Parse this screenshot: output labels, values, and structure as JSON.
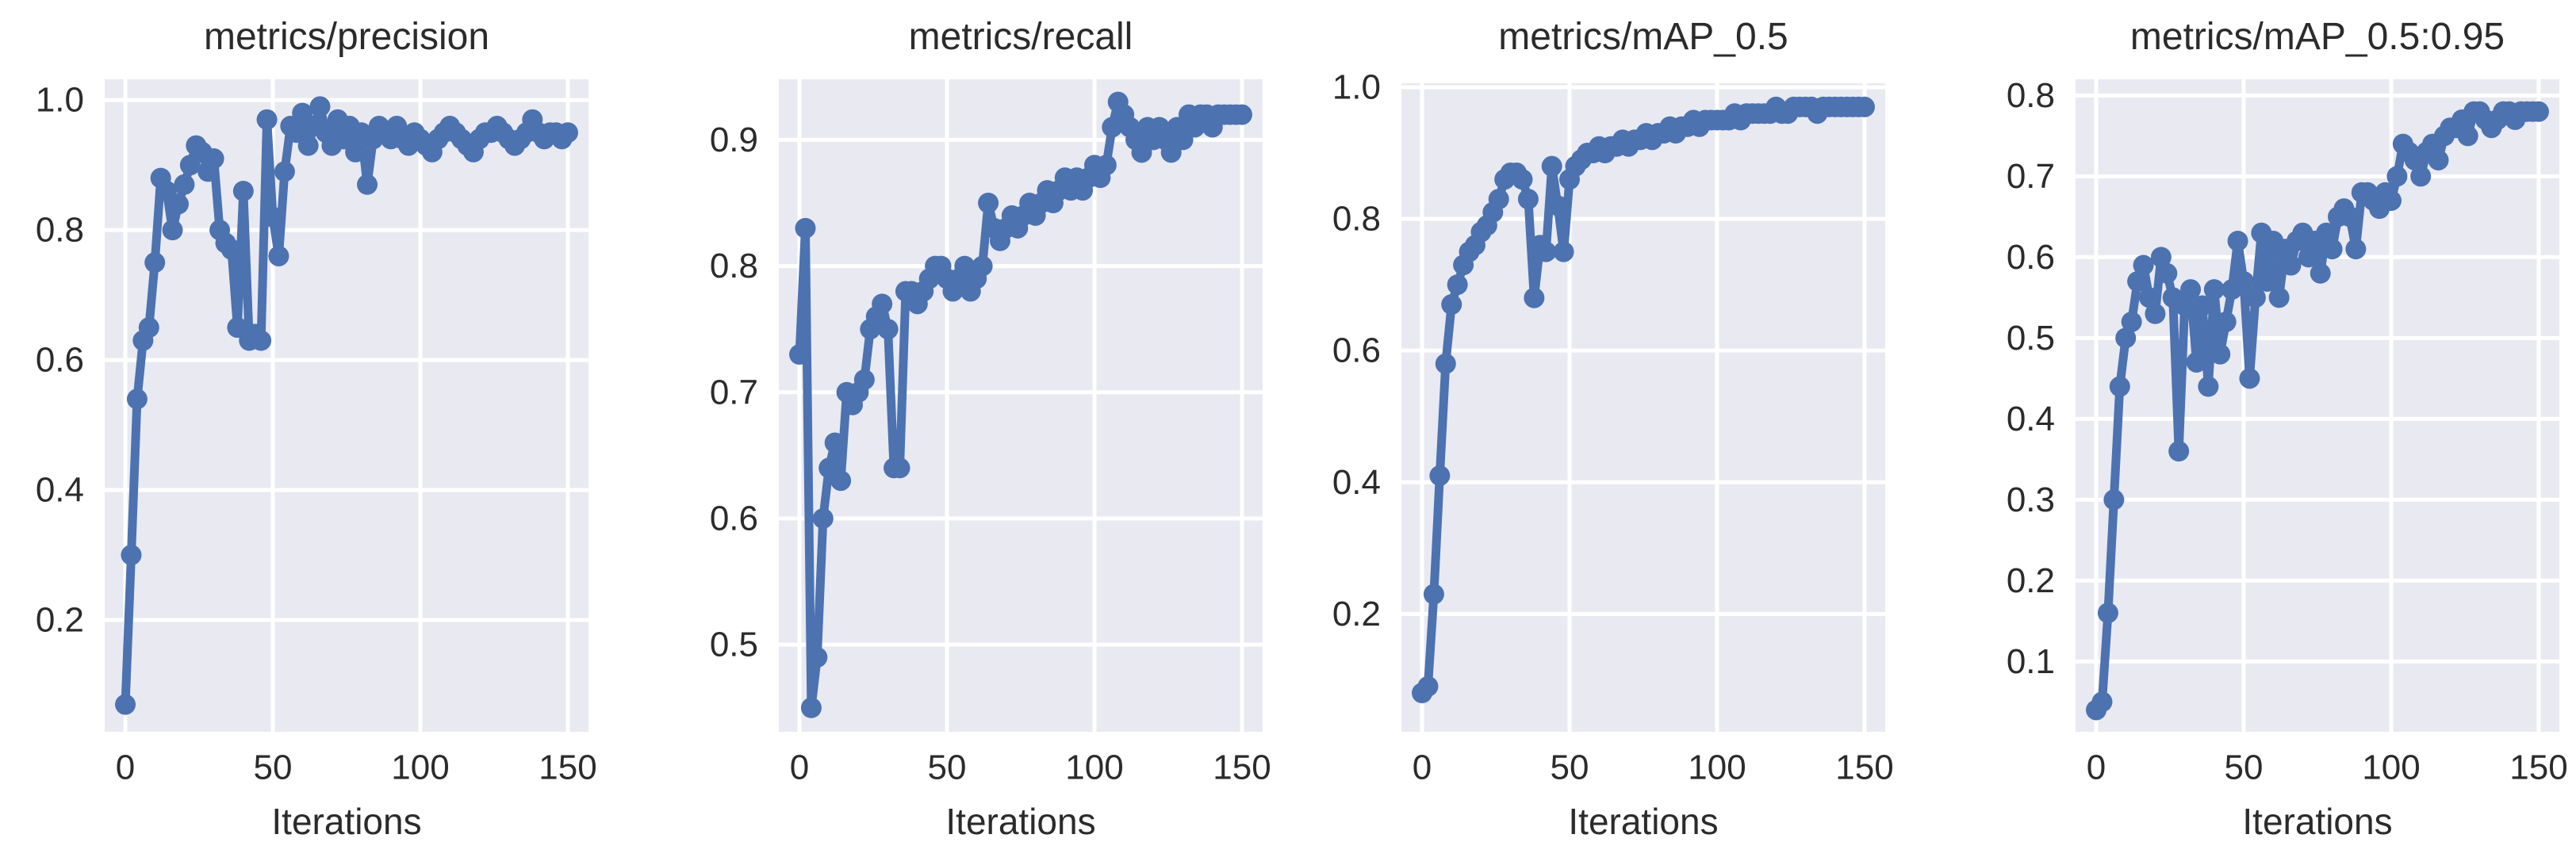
{
  "figure": {
    "line_color": "#4c72b0",
    "plot_bg_color": "#e9e9f1",
    "grid_color": "#ffffff",
    "text_color": "#2b2b2b",
    "figure_bg_color": "#ffffff",
    "marker": "circle",
    "legend": "none",
    "grid": "on"
  },
  "chart_data": [
    {
      "type": "line",
      "title": "metrics/precision",
      "xlabel": "Iterations",
      "xtick_values": [
        0,
        50,
        100,
        150
      ],
      "xtick_labels": [
        "0",
        "50",
        "100",
        "150"
      ],
      "ytick_values": [
        0.2,
        0.4,
        0.6,
        0.8,
        1.0
      ],
      "ytick_labels": [
        "0.2",
        "0.4",
        "0.6",
        "0.8",
        "1.0"
      ],
      "xlim": [
        -7,
        157
      ],
      "ylim": [
        0.028,
        1.032
      ],
      "x": [
        0,
        2,
        4,
        6,
        8,
        10,
        12,
        14,
        16,
        18,
        20,
        22,
        24,
        26,
        28,
        30,
        32,
        34,
        36,
        38,
        40,
        42,
        44,
        46,
        48,
        50,
        52,
        54,
        56,
        58,
        60,
        62,
        64,
        66,
        68,
        70,
        72,
        74,
        76,
        78,
        80,
        82,
        84,
        86,
        88,
        90,
        92,
        94,
        96,
        98,
        100,
        102,
        104,
        106,
        108,
        110,
        112,
        114,
        116,
        118,
        120,
        122,
        124,
        126,
        128,
        130,
        132,
        134,
        136,
        138,
        140,
        142,
        144,
        146,
        148,
        150
      ],
      "y": [
        0.07,
        0.3,
        0.54,
        0.63,
        0.65,
        0.75,
        0.88,
        0.86,
        0.8,
        0.84,
        0.87,
        0.9,
        0.93,
        0.92,
        0.89,
        0.91,
        0.8,
        0.78,
        0.77,
        0.65,
        0.86,
        0.63,
        0.64,
        0.63,
        0.97,
        0.82,
        0.76,
        0.89,
        0.96,
        0.95,
        0.98,
        0.93,
        0.96,
        0.99,
        0.95,
        0.93,
        0.97,
        0.94,
        0.96,
        0.92,
        0.95,
        0.87,
        0.94,
        0.96,
        0.95,
        0.94,
        0.96,
        0.94,
        0.93,
        0.95,
        0.94,
        0.93,
        0.92,
        0.94,
        0.95,
        0.96,
        0.95,
        0.94,
        0.93,
        0.92,
        0.94,
        0.95,
        0.95,
        0.96,
        0.95,
        0.94,
        0.93,
        0.94,
        0.95,
        0.97,
        0.95,
        0.94,
        0.95,
        0.95,
        0.94,
        0.95
      ]
    },
    {
      "type": "line",
      "title": "metrics/recall",
      "xlabel": "Iterations",
      "xtick_values": [
        0,
        50,
        100,
        150
      ],
      "xtick_labels": [
        "0",
        "50",
        "100",
        "150"
      ],
      "ytick_values": [
        0.5,
        0.6,
        0.7,
        0.8,
        0.9
      ],
      "ytick_labels": [
        "0.5",
        "0.6",
        "0.7",
        "0.8",
        "0.9"
      ],
      "xlim": [
        -7,
        157
      ],
      "ylim": [
        0.431,
        0.948
      ],
      "x": [
        0,
        2,
        4,
        6,
        8,
        10,
        12,
        14,
        16,
        18,
        20,
        22,
        24,
        26,
        28,
        30,
        32,
        34,
        36,
        38,
        40,
        42,
        44,
        46,
        48,
        50,
        52,
        54,
        56,
        58,
        60,
        62,
        64,
        66,
        68,
        70,
        72,
        74,
        76,
        78,
        80,
        82,
        84,
        86,
        88,
        90,
        92,
        94,
        96,
        98,
        100,
        102,
        104,
        106,
        108,
        110,
        112,
        114,
        116,
        118,
        120,
        122,
        124,
        126,
        128,
        130,
        132,
        134,
        136,
        138,
        140,
        142,
        144,
        146,
        148,
        150
      ],
      "y": [
        0.73,
        0.83,
        0.45,
        0.49,
        0.6,
        0.64,
        0.66,
        0.63,
        0.7,
        0.69,
        0.7,
        0.71,
        0.75,
        0.76,
        0.77,
        0.75,
        0.64,
        0.64,
        0.78,
        0.78,
        0.77,
        0.78,
        0.79,
        0.8,
        0.8,
        0.79,
        0.78,
        0.79,
        0.8,
        0.78,
        0.79,
        0.8,
        0.85,
        0.83,
        0.82,
        0.83,
        0.84,
        0.83,
        0.84,
        0.85,
        0.84,
        0.85,
        0.86,
        0.85,
        0.86,
        0.87,
        0.86,
        0.87,
        0.86,
        0.87,
        0.88,
        0.87,
        0.88,
        0.91,
        0.93,
        0.92,
        0.91,
        0.9,
        0.89,
        0.91,
        0.9,
        0.91,
        0.9,
        0.89,
        0.91,
        0.9,
        0.92,
        0.91,
        0.92,
        0.92,
        0.91,
        0.92,
        0.92,
        0.92,
        0.92,
        0.92
      ]
    },
    {
      "type": "line",
      "title": "metrics/mAP_0.5",
      "xlabel": "Iterations",
      "xtick_values": [
        0,
        50,
        100,
        150
      ],
      "xtick_labels": [
        "0",
        "50",
        "100",
        "150"
      ],
      "ytick_values": [
        0.2,
        0.4,
        0.6,
        0.8,
        1.0
      ],
      "ytick_labels": [
        "0.2",
        "0.4",
        "0.6",
        "0.8",
        "1.0"
      ],
      "xlim": [
        -7,
        157
      ],
      "ylim": [
        0.021,
        1.006
      ],
      "x": [
        0,
        2,
        4,
        6,
        8,
        10,
        12,
        14,
        16,
        18,
        20,
        22,
        24,
        26,
        28,
        30,
        32,
        34,
        36,
        38,
        40,
        42,
        44,
        46,
        48,
        50,
        52,
        54,
        56,
        58,
        60,
        62,
        64,
        66,
        68,
        70,
        72,
        74,
        76,
        78,
        80,
        82,
        84,
        86,
        88,
        90,
        92,
        94,
        96,
        98,
        100,
        102,
        104,
        106,
        108,
        110,
        112,
        114,
        116,
        118,
        120,
        122,
        124,
        126,
        128,
        130,
        132,
        134,
        136,
        138,
        140,
        142,
        144,
        146,
        148,
        150
      ],
      "y": [
        0.08,
        0.09,
        0.23,
        0.41,
        0.58,
        0.67,
        0.7,
        0.73,
        0.75,
        0.76,
        0.78,
        0.79,
        0.81,
        0.83,
        0.86,
        0.87,
        0.87,
        0.86,
        0.83,
        0.68,
        0.76,
        0.75,
        0.88,
        0.82,
        0.75,
        0.86,
        0.88,
        0.89,
        0.9,
        0.9,
        0.91,
        0.9,
        0.91,
        0.91,
        0.92,
        0.91,
        0.92,
        0.92,
        0.93,
        0.92,
        0.93,
        0.93,
        0.94,
        0.93,
        0.94,
        0.94,
        0.95,
        0.94,
        0.95,
        0.95,
        0.95,
        0.95,
        0.95,
        0.96,
        0.95,
        0.96,
        0.96,
        0.96,
        0.96,
        0.96,
        0.97,
        0.96,
        0.96,
        0.97,
        0.97,
        0.97,
        0.97,
        0.96,
        0.97,
        0.97,
        0.97,
        0.97,
        0.97,
        0.97,
        0.97,
        0.97
      ]
    },
    {
      "type": "line",
      "title": "metrics/mAP_0.5:0.95",
      "xlabel": "Iterations",
      "xtick_values": [
        0,
        50,
        100,
        150
      ],
      "xtick_labels": [
        "0",
        "50",
        "100",
        "150"
      ],
      "ytick_values": [
        0.1,
        0.2,
        0.3,
        0.4,
        0.5,
        0.6,
        0.7,
        0.8
      ],
      "ytick_labels": [
        "0.1",
        "0.2",
        "0.3",
        "0.4",
        "0.5",
        "0.6",
        "0.7",
        "0.8"
      ],
      "xlim": [
        -7,
        157
      ],
      "ylim": [
        0.013,
        0.82
      ],
      "x": [
        0,
        2,
        4,
        6,
        8,
        10,
        12,
        14,
        16,
        18,
        20,
        22,
        24,
        26,
        28,
        30,
        32,
        34,
        36,
        38,
        40,
        42,
        44,
        46,
        48,
        50,
        52,
        54,
        56,
        58,
        60,
        62,
        64,
        66,
        68,
        70,
        72,
        74,
        76,
        78,
        80,
        82,
        84,
        86,
        88,
        90,
        92,
        94,
        96,
        98,
        100,
        102,
        104,
        106,
        108,
        110,
        112,
        114,
        116,
        118,
        120,
        122,
        124,
        126,
        128,
        130,
        132,
        134,
        136,
        138,
        140,
        142,
        144,
        146,
        148,
        150
      ],
      "y": [
        0.04,
        0.05,
        0.16,
        0.3,
        0.44,
        0.5,
        0.52,
        0.57,
        0.59,
        0.55,
        0.53,
        0.6,
        0.58,
        0.55,
        0.36,
        0.54,
        0.56,
        0.47,
        0.54,
        0.44,
        0.56,
        0.48,
        0.52,
        0.56,
        0.62,
        0.57,
        0.45,
        0.55,
        0.63,
        0.57,
        0.62,
        0.55,
        0.61,
        0.59,
        0.62,
        0.63,
        0.6,
        0.62,
        0.58,
        0.63,
        0.61,
        0.65,
        0.66,
        0.65,
        0.61,
        0.68,
        0.68,
        0.67,
        0.66,
        0.68,
        0.67,
        0.7,
        0.74,
        0.73,
        0.72,
        0.7,
        0.73,
        0.74,
        0.72,
        0.75,
        0.76,
        0.76,
        0.77,
        0.75,
        0.78,
        0.78,
        0.77,
        0.76,
        0.77,
        0.78,
        0.78,
        0.77,
        0.78,
        0.78,
        0.78,
        0.78
      ]
    }
  ]
}
